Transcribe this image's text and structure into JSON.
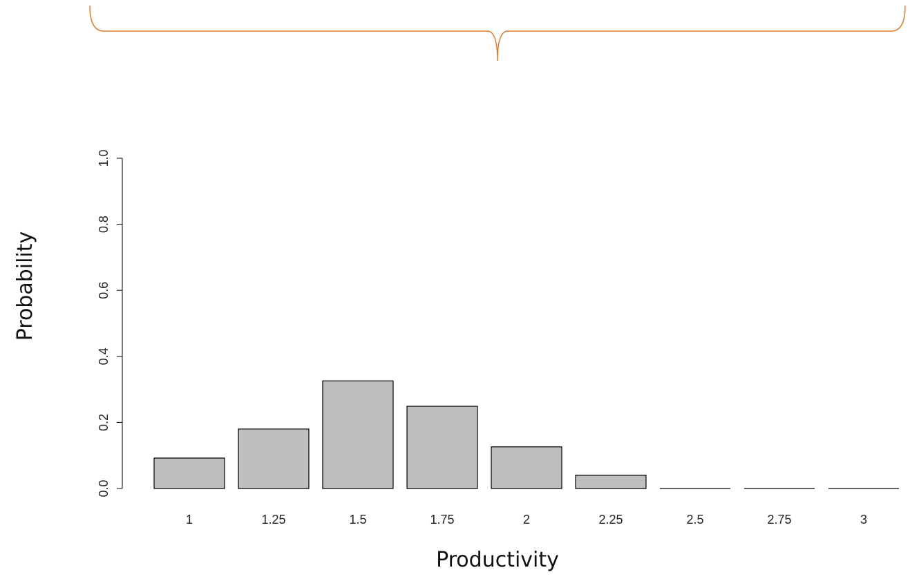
{
  "chart_data": {
    "type": "bar",
    "x_label": "Productivity",
    "y_label": "Probability",
    "categories": [
      "1",
      "1.25",
      "1.5",
      "1.75",
      "2",
      "2.25",
      "2.5",
      "2.75",
      "3"
    ],
    "values": [
      0.092,
      0.18,
      0.326,
      0.249,
      0.126,
      0.04,
      0,
      0,
      0
    ],
    "color": "#bebebe",
    "ylim": [
      0,
      1
    ],
    "yticks": [
      {
        "value": 0,
        "label": "0.0"
      },
      0.2,
      0.4,
      0.6,
      0.8,
      {
        "value": 1,
        "label": "1.0"
      }
    ]
  }
}
